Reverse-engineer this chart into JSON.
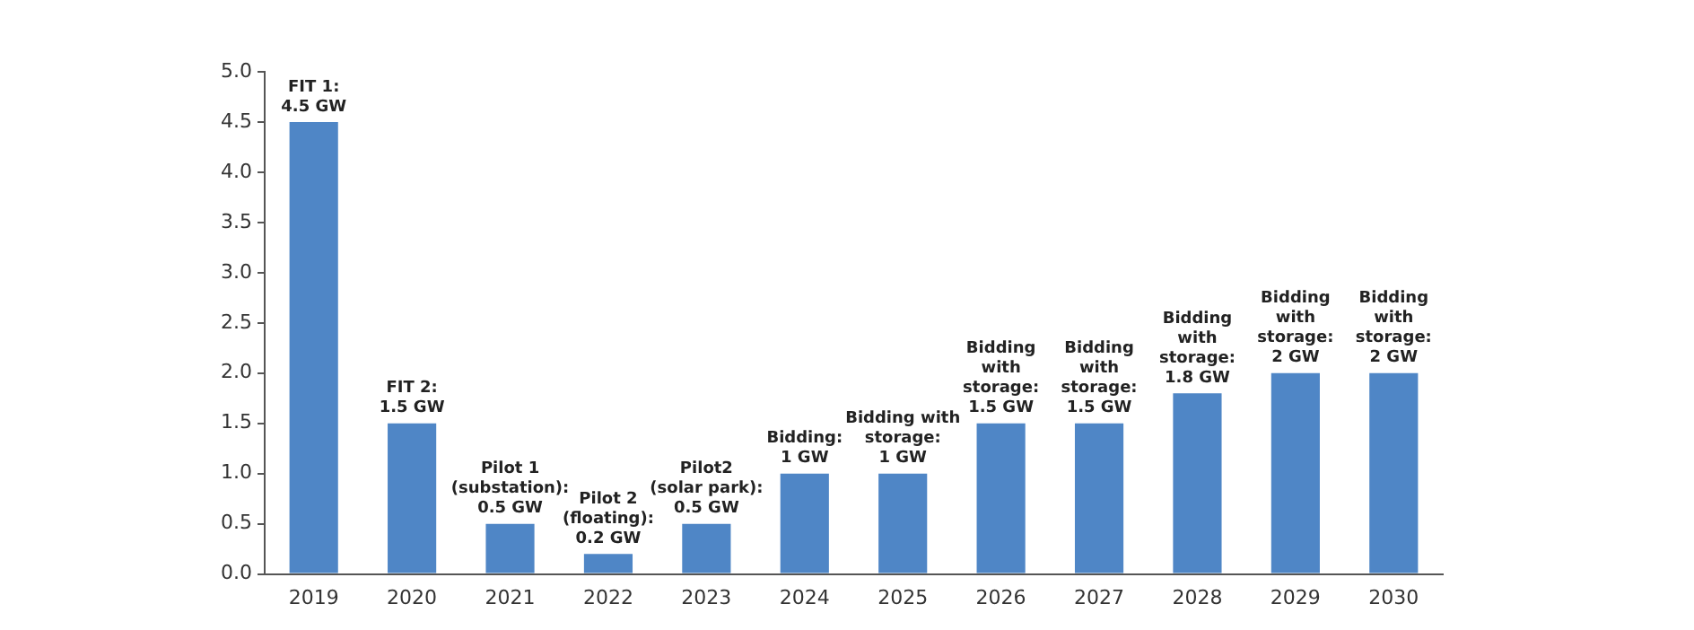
{
  "chart_data": {
    "type": "bar",
    "categories": [
      "2019",
      "2020",
      "2021",
      "2022",
      "2023",
      "2024",
      "2025",
      "2026",
      "2027",
      "2028",
      "2029",
      "2030"
    ],
    "values": [
      4.5,
      1.5,
      0.5,
      0.2,
      0.5,
      1,
      1,
      1.5,
      1.5,
      1.8,
      2,
      2
    ],
    "value_labels": [
      "FIT 1:\n4.5 GW",
      "FIT 2:\n1.5 GW",
      "Pilot 1\n(substation):\n0.5 GW",
      "Pilot 2\n(floating):\n0.2 GW",
      "Pilot2\n(solar park):\n0.5 GW",
      "Bidding:\n1 GW",
      "Bidding with\nstorage:\n1 GW",
      "Bidding\nwith\nstorage:\n1.5 GW",
      "Bidding\nwith\nstorage:\n1.5 GW",
      "Bidding\nwith\nstorage:\n1.8 GW",
      "Bidding\nwith\nstorage:\n2 GW",
      "Bidding\nwith\nstorage:\n2 GW"
    ],
    "color": "#4f86c6",
    "ylim": [
      0,
      5
    ],
    "yticks": [
      {
        "value": 0,
        "label": "0.0"
      },
      {
        "value": 0.5,
        "label": "0.5"
      },
      {
        "value": 1,
        "label": "1.0"
      },
      {
        "value": 1.5,
        "label": "1.5"
      },
      {
        "value": 2,
        "label": "2.0"
      },
      {
        "value": 2.5,
        "label": "2.5"
      },
      {
        "value": 3,
        "label": "3.0"
      },
      {
        "value": 3.5,
        "label": "3.5"
      },
      {
        "value": 4,
        "label": "4.0"
      },
      {
        "value": 4.5,
        "label": "4.5"
      },
      {
        "value": 5,
        "label": "5.0"
      }
    ],
    "grid": false,
    "legend": false
  }
}
